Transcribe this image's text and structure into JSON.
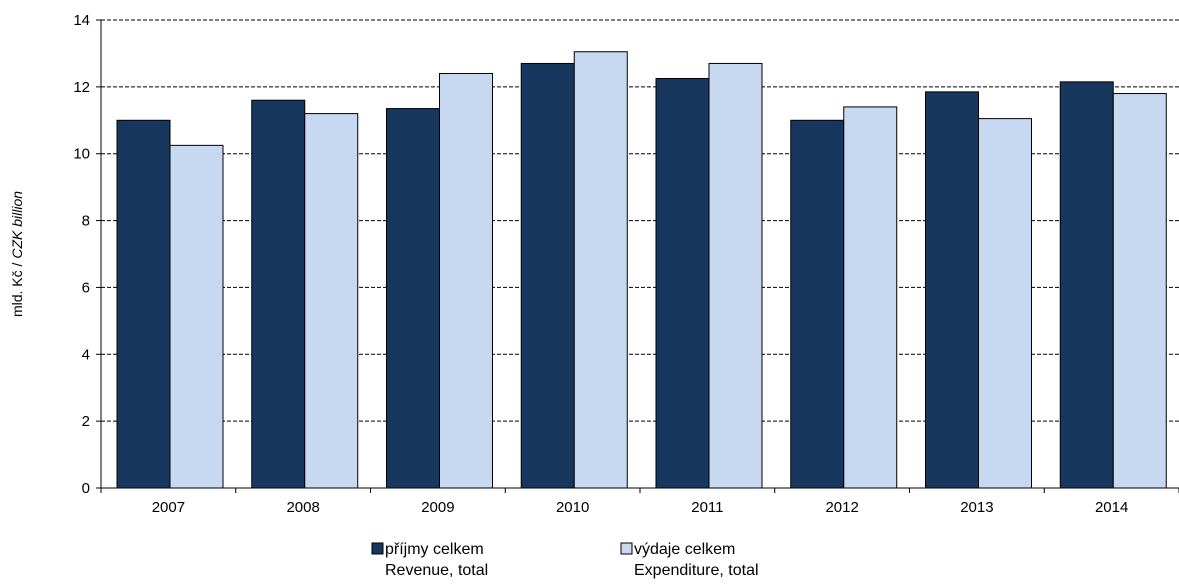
{
  "chart_data": {
    "type": "bar",
    "categories": [
      "2007",
      "2008",
      "2009",
      "2010",
      "2011",
      "2012",
      "2013",
      "2014"
    ],
    "series": [
      {
        "name": "příjmy celkem",
        "name_en": "Revenue, total",
        "color": "#17375e",
        "values": [
          11.0,
          11.6,
          11.35,
          12.7,
          12.25,
          11.0,
          11.85,
          12.15
        ]
      },
      {
        "name": "výdaje celkem",
        "name_en": "Expenditure, total",
        "color": "#c6d9f1",
        "values": [
          10.25,
          11.2,
          12.4,
          13.05,
          12.7,
          11.4,
          11.05,
          11.8
        ]
      }
    ],
    "ylabel_plain": "mld. Kč / ",
    "ylabel_italic": "CZK billion",
    "ylim": [
      0,
      14
    ],
    "yticks": [
      0,
      2,
      4,
      6,
      8,
      10,
      12,
      14
    ],
    "grid": true,
    "legend_position": "bottom"
  }
}
